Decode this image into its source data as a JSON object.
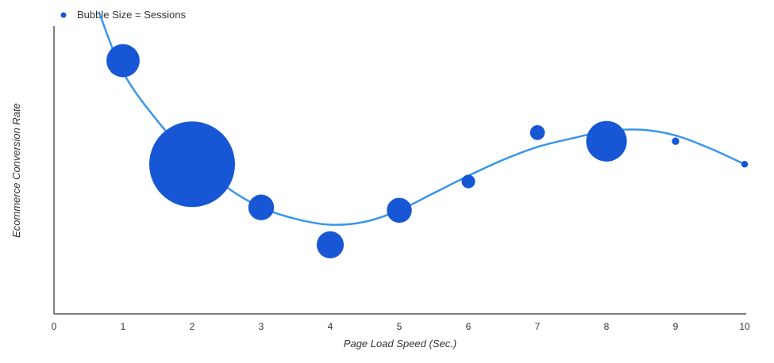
{
  "chart_data": {
    "type": "scatter",
    "subtype": "bubble",
    "title": "",
    "xlabel": "Page Load Speed (Sec.)",
    "ylabel": "Ecommerce Conversion Rate",
    "xlim": [
      0,
      10
    ],
    "ylim": [
      0,
      10
    ],
    "x_ticks": [
      "0",
      "1",
      "2",
      "3",
      "4",
      "5",
      "6",
      "7",
      "8",
      "9",
      "10"
    ],
    "y_ticks_shown": false,
    "grid": false,
    "legend": {
      "position": "top-left",
      "label": "Bubble Size = Sessions"
    },
    "bubble_color": "#1756d4",
    "curve_color": "#3a96e8",
    "bubbles": [
      {
        "x": 1,
        "y": 8.8,
        "size": 30
      },
      {
        "x": 2,
        "y": 5.2,
        "size": 200
      },
      {
        "x": 3,
        "y": 3.7,
        "size": 18
      },
      {
        "x": 4,
        "y": 2.4,
        "size": 20
      },
      {
        "x": 5,
        "y": 3.6,
        "size": 17
      },
      {
        "x": 6,
        "y": 4.6,
        "size": 5
      },
      {
        "x": 7,
        "y": 6.3,
        "size": 6
      },
      {
        "x": 8,
        "y": 6.0,
        "size": 45
      },
      {
        "x": 9,
        "y": 6.0,
        "size": 1.5
      },
      {
        "x": 10,
        "y": 5.2,
        "size": 1.2
      }
    ],
    "trend_curve": [
      {
        "x": 0.65,
        "y": 10.5
      },
      {
        "x": 1,
        "y": 8.4
      },
      {
        "x": 1.5,
        "y": 6.7
      },
      {
        "x": 2,
        "y": 5.4
      },
      {
        "x": 2.5,
        "y": 4.4
      },
      {
        "x": 3,
        "y": 3.7
      },
      {
        "x": 3.5,
        "y": 3.3
      },
      {
        "x": 4,
        "y": 3.1
      },
      {
        "x": 4.5,
        "y": 3.2
      },
      {
        "x": 5,
        "y": 3.6
      },
      {
        "x": 5.5,
        "y": 4.2
      },
      {
        "x": 6,
        "y": 4.8
      },
      {
        "x": 6.5,
        "y": 5.35
      },
      {
        "x": 7,
        "y": 5.8
      },
      {
        "x": 7.5,
        "y": 6.1
      },
      {
        "x": 8,
        "y": 6.35
      },
      {
        "x": 8.5,
        "y": 6.4
      },
      {
        "x": 9,
        "y": 6.2
      },
      {
        "x": 9.5,
        "y": 5.75
      },
      {
        "x": 10,
        "y": 5.2
      }
    ]
  }
}
